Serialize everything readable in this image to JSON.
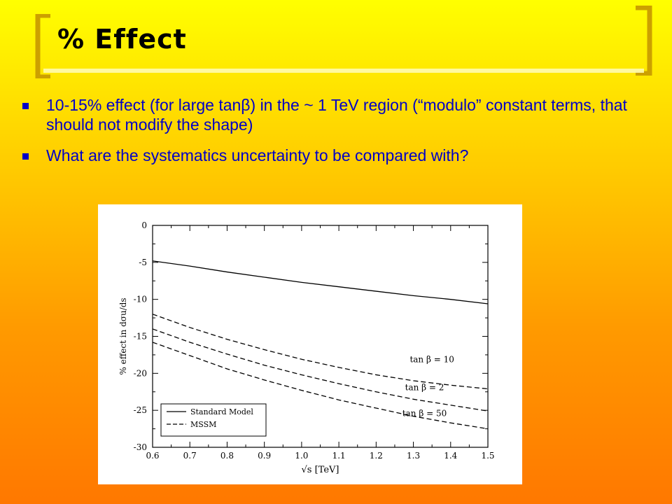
{
  "slide": {
    "title": "% Effect",
    "bullets": [
      "10-15% effect (for large tanβ) in the ~ 1 TeV region (“modulo” constant terms, that should not modify the shape)",
      "What are the systematics uncertainty to be compared with?"
    ],
    "colors": {
      "bullet_text": "#0000c8",
      "bracket": "#cca000",
      "background_top": "#ffff00",
      "background_bottom": "#ff7800"
    }
  },
  "chart_data": {
    "type": "line",
    "xlabel": "√s  [TeV]",
    "ylabel": "% effect in dσu/ds",
    "xlim": [
      0.6,
      1.5
    ],
    "ylim": [
      -30,
      0
    ],
    "xticks": [
      "0.6",
      "0.7",
      "0.8",
      "0.9",
      "1.0",
      "1.1",
      "1.2",
      "1.3",
      "1.4",
      "1.5"
    ],
    "yticks": [
      "0",
      "-5",
      "-10",
      "-15",
      "-20",
      "-25",
      "-30"
    ],
    "x": [
      0.6,
      0.7,
      0.8,
      0.9,
      1.0,
      1.1,
      1.2,
      1.3,
      1.4,
      1.5
    ],
    "series": [
      {
        "name": "Standard Model",
        "style": "solid",
        "values": [
          -4.8,
          -5.5,
          -6.3,
          -7.0,
          -7.7,
          -8.3,
          -8.9,
          -9.5,
          -10.0,
          -10.6
        ]
      },
      {
        "name": "",
        "style": "dashed",
        "values": [
          -12.0,
          -13.8,
          -15.4,
          -16.8,
          -18.1,
          -19.2,
          -20.2,
          -21.0,
          -21.6,
          -22.1
        ]
      },
      {
        "name": "",
        "style": "dashed",
        "values": [
          -14.0,
          -15.8,
          -17.4,
          -18.9,
          -20.2,
          -21.4,
          -22.5,
          -23.5,
          -24.3,
          -25.1
        ]
      },
      {
        "name": "",
        "style": "dashed",
        "values": [
          -15.8,
          -17.6,
          -19.4,
          -20.9,
          -22.3,
          -23.6,
          -24.7,
          -25.8,
          -26.7,
          -27.5
        ]
      }
    ],
    "annotations": [
      {
        "text": "tan β = 10",
        "x": 1.35,
        "y": -18.5
      },
      {
        "text": "tan β = 2",
        "x": 1.33,
        "y": -22.3
      },
      {
        "text": "tan β = 50",
        "x": 1.33,
        "y": -25.8
      }
    ],
    "legend": {
      "placement": "bottom-left",
      "entries": [
        {
          "label": "Standard Model",
          "style": "solid"
        },
        {
          "label": "MSSM",
          "style": "dashed"
        }
      ]
    },
    "grid": false
  }
}
